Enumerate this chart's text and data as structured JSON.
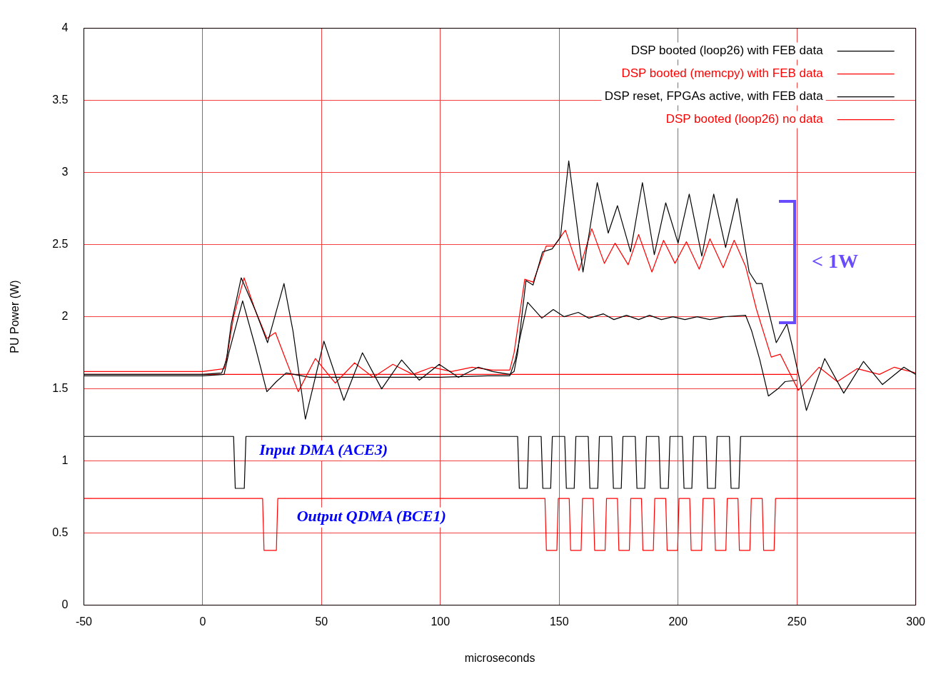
{
  "chart_data": {
    "type": "line",
    "xlabel": "microseconds",
    "ylabel": "PU Power (W)",
    "xlim": [
      -50,
      300
    ],
    "xticks": [
      -50,
      0,
      50,
      100,
      150,
      200,
      250,
      300
    ],
    "ylim": [
      0,
      4
    ],
    "yticks": [
      0,
      0.5,
      1,
      1.5,
      2,
      2.5,
      3,
      3.5,
      4
    ],
    "grid": true,
    "legend": "top right",
    "marker": "none",
    "line_style": "solid",
    "annotations": [
      "Input DMA (ACE3)",
      "Output QDMA (BCE1)",
      "< 1W"
    ],
    "series": [
      {
        "name": "DSP booted (loop26) with FEB data",
        "color": "#000000",
        "x": [
          -50,
          -20,
          0,
          8,
          10,
          12,
          16.2,
          22,
          27.3,
          34.2,
          38,
          43.2,
          51,
          59.4,
          67.2,
          75.3,
          83.7,
          91.1,
          99.5,
          107.6,
          116,
          122,
          129.2,
          131,
          132.5,
          136,
          139,
          143,
          147,
          150.5,
          154,
          160,
          166,
          170.6,
          174.5,
          180,
          185,
          190,
          194.8,
          200,
          204.7,
          210,
          215,
          220,
          224.8,
          229.9,
          233,
          235.3,
          241.3,
          245.8,
          248,
          254,
          261.7,
          269.7,
          278,
          286,
          295,
          300
        ],
        "values": [
          1.6,
          1.6,
          1.6,
          1.61,
          1.7,
          1.95,
          2.27,
          2.05,
          1.82,
          2.23,
          1.9,
          1.29,
          1.83,
          1.42,
          1.75,
          1.5,
          1.7,
          1.56,
          1.67,
          1.58,
          1.65,
          1.62,
          1.6,
          1.62,
          1.75,
          2.25,
          2.22,
          2.45,
          2.47,
          2.55,
          3.08,
          2.31,
          2.93,
          2.58,
          2.77,
          2.45,
          2.93,
          2.43,
          2.79,
          2.51,
          2.85,
          2.42,
          2.85,
          2.48,
          2.82,
          2.31,
          2.23,
          2.23,
          1.82,
          1.95,
          1.8,
          1.35,
          1.71,
          1.47,
          1.69,
          1.53,
          1.65,
          1.6
        ]
      },
      {
        "name": "DSP booted (memcpy) with FEB data",
        "color": "#ff0000",
        "x": [
          -50,
          0,
          9,
          10.5,
          13,
          17.4,
          22,
          27,
          30.6,
          35,
          40.2,
          47.4,
          55.8,
          63.9,
          71.7,
          80,
          88.4,
          96.5,
          104.6,
          113.3,
          122,
          129.2,
          131,
          135.5,
          139,
          144.5,
          147.8,
          152.6,
          158.3,
          163.7,
          169,
          173.5,
          179,
          183.4,
          189,
          193.9,
          198.7,
          203.5,
          208.9,
          213.4,
          219,
          223.6,
          228.4,
          233,
          239.2,
          243,
          250.6,
          259.3,
          267,
          275.4,
          284.7,
          291,
          300
        ],
        "values": [
          1.62,
          1.62,
          1.64,
          1.75,
          2.0,
          2.27,
          2.05,
          1.85,
          1.89,
          1.7,
          1.48,
          1.71,
          1.54,
          1.68,
          1.58,
          1.67,
          1.6,
          1.65,
          1.62,
          1.65,
          1.63,
          1.63,
          1.75,
          2.26,
          2.24,
          2.49,
          2.49,
          2.6,
          2.32,
          2.61,
          2.37,
          2.51,
          2.36,
          2.57,
          2.31,
          2.53,
          2.37,
          2.52,
          2.33,
          2.54,
          2.34,
          2.53,
          2.35,
          2.05,
          1.72,
          1.74,
          1.49,
          1.65,
          1.55,
          1.64,
          1.6,
          1.65,
          1.61
        ]
      },
      {
        "name": "DSP reset, FPGAs active, with FEB data",
        "color": "#000000",
        "x": [
          -50,
          0,
          9,
          11,
          16.8,
          22,
          27,
          31,
          35.1,
          45,
          60,
          80,
          100,
          120,
          129.2,
          131.5,
          136.7,
          142.7,
          147.5,
          152,
          158,
          162.5,
          168.5,
          173,
          178.3,
          183.4,
          188,
          193,
          197.8,
          202.9,
          208,
          213.4,
          219.4,
          228.4,
          231,
          234.4,
          238,
          242,
          245,
          250
        ],
        "values": [
          1.59,
          1.59,
          1.6,
          1.75,
          2.11,
          1.8,
          1.48,
          1.55,
          1.61,
          1.58,
          1.58,
          1.58,
          1.58,
          1.59,
          1.59,
          1.7,
          2.1,
          1.99,
          2.05,
          2.0,
          2.03,
          1.99,
          2.02,
          1.98,
          2.01,
          1.98,
          2.01,
          1.98,
          2.0,
          1.98,
          2.0,
          1.98,
          2.0,
          2.01,
          1.9,
          1.7,
          1.45,
          1.5,
          1.55,
          1.56
        ]
      },
      {
        "name": "DSP booted (loop26) no data",
        "color": "#ff0000",
        "x": [
          -50,
          0,
          50,
          100,
          150,
          200,
          250
        ],
        "values": [
          1.6,
          1.6,
          1.6,
          1.6,
          1.6,
          1.6,
          1.6
        ]
      },
      {
        "color": "#000000",
        "x": [
          -50,
          13,
          13.7,
          17.5,
          18.2,
          132.5,
          133.2,
          136.5,
          137.2,
          142.4,
          143.1,
          146.4,
          147.1,
          152.3,
          153,
          156.3,
          157,
          162.2,
          162.9,
          166.2,
          166.9,
          172.1,
          172.8,
          176.1,
          176.8,
          182,
          182.7,
          186,
          186.7,
          191.9,
          192.6,
          195.9,
          196.6,
          201.8,
          202.5,
          205.8,
          206.5,
          211.7,
          212.4,
          215.7,
          216.4,
          221.6,
          222.3,
          225.6,
          226.3,
          300
        ],
        "values": [
          1.17,
          1.17,
          0.81,
          0.81,
          1.17,
          1.17,
          0.81,
          0.81,
          1.17,
          1.17,
          0.81,
          0.81,
          1.17,
          1.17,
          0.81,
          0.81,
          1.17,
          1.17,
          0.81,
          0.81,
          1.17,
          1.17,
          0.81,
          0.81,
          1.17,
          1.17,
          0.81,
          0.81,
          1.17,
          1.17,
          0.81,
          0.81,
          1.17,
          1.17,
          0.81,
          0.81,
          1.17,
          1.17,
          0.81,
          0.81,
          1.17,
          1.17,
          0.81,
          0.81,
          1.17,
          1.17
        ]
      },
      {
        "color": "#ff0000",
        "x": [
          -50,
          25.2,
          25.8,
          31,
          31.6,
          144,
          144.6,
          149,
          149.6,
          154.2,
          154.8,
          159.2,
          159.8,
          164.3,
          164.9,
          169.3,
          169.9,
          174.5,
          175.1,
          179.5,
          180.1,
          184.6,
          185.2,
          189.6,
          190.2,
          194.8,
          195.4,
          199.8,
          200.4,
          204.9,
          205.5,
          209.9,
          210.5,
          215.1,
          215.7,
          220.1,
          220.7,
          225.2,
          225.8,
          230.2,
          230.8,
          235.4,
          236,
          240.4,
          241,
          300
        ],
        "values": [
          0.74,
          0.74,
          0.38,
          0.38,
          0.74,
          0.74,
          0.38,
          0.38,
          0.74,
          0.74,
          0.38,
          0.38,
          0.74,
          0.74,
          0.38,
          0.38,
          0.74,
          0.74,
          0.38,
          0.38,
          0.74,
          0.74,
          0.38,
          0.38,
          0.74,
          0.74,
          0.38,
          0.38,
          0.74,
          0.74,
          0.38,
          0.38,
          0.74,
          0.74,
          0.38,
          0.38,
          0.74,
          0.74,
          0.38,
          0.38,
          0.74,
          0.74,
          0.38,
          0.38,
          0.74,
          0.74
        ]
      }
    ]
  }
}
